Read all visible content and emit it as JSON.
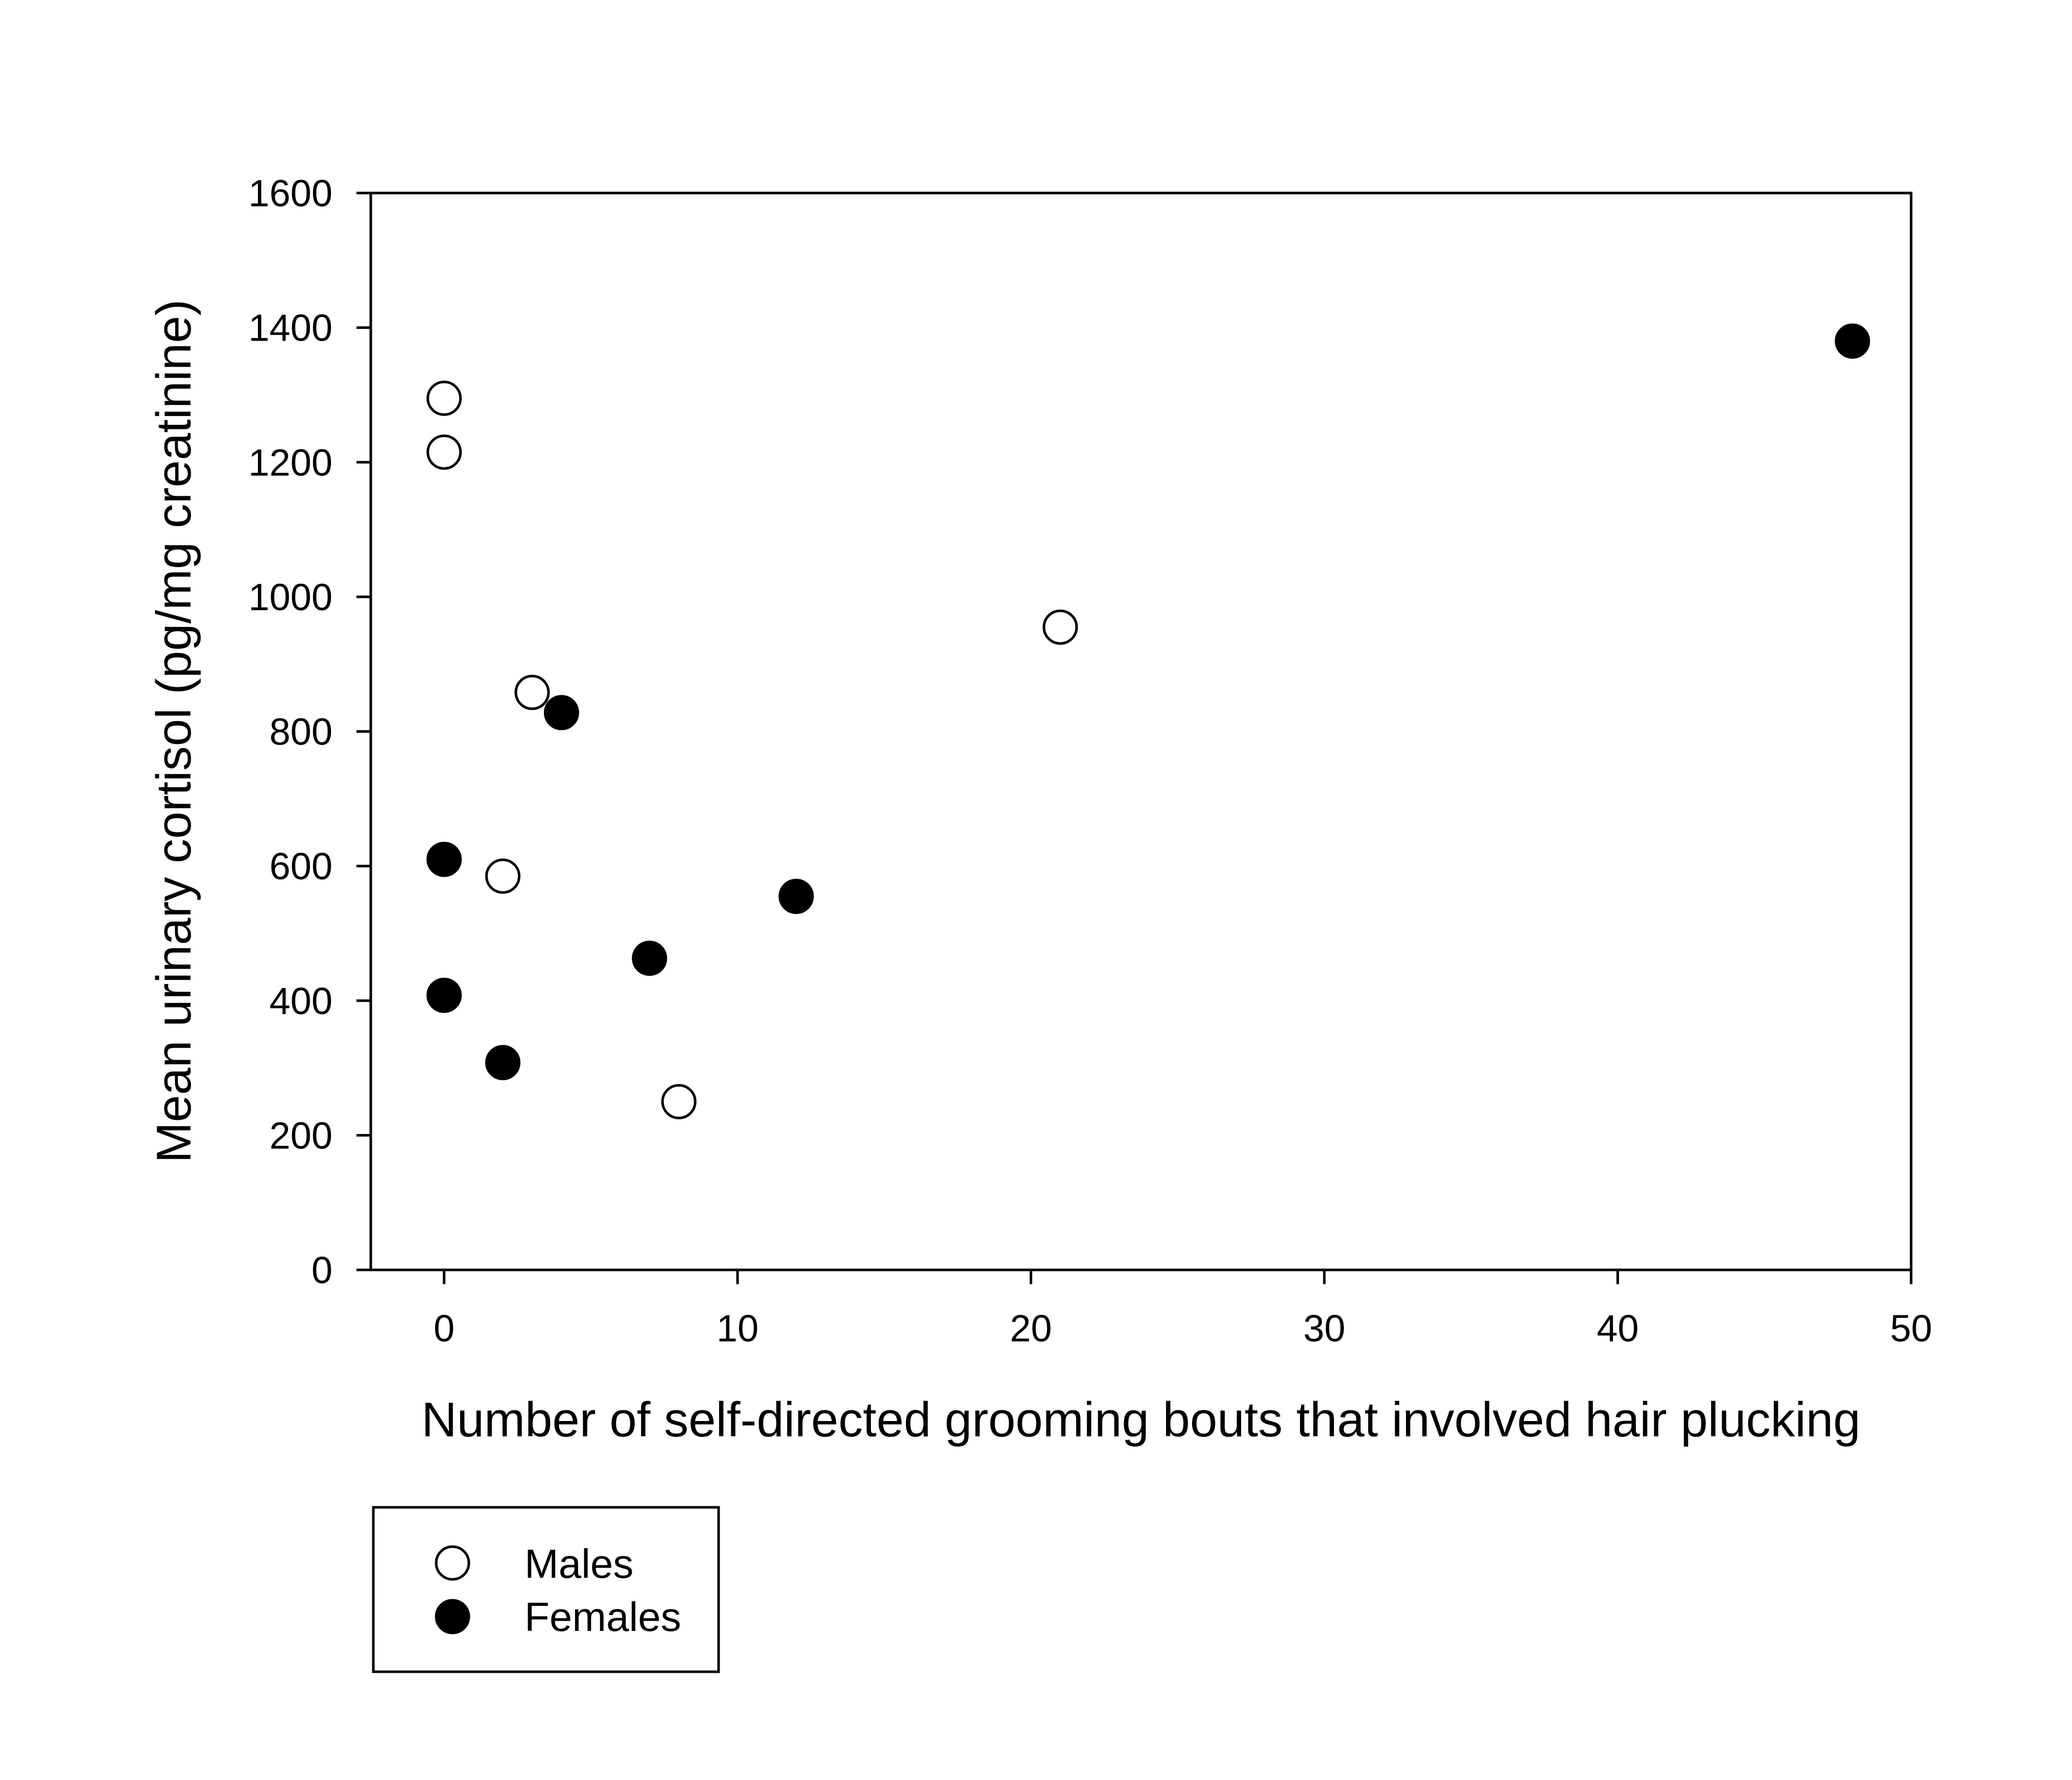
{
  "chart_data": {
    "type": "scatter",
    "xlabel": "Number of self-directed grooming bouts that involved hair plucking",
    "ylabel": "Mean urinary cortisol (pg/mg creatinine)",
    "xlim": [
      -2.5,
      50
    ],
    "ylim": [
      0,
      1600
    ],
    "xticks": [
      0,
      10,
      20,
      30,
      40,
      50
    ],
    "yticks": [
      0,
      200,
      400,
      600,
      800,
      1000,
      1200,
      1400,
      1600
    ],
    "grid": false,
    "legend_position": "bottom-left",
    "series": [
      {
        "name": "Males",
        "marker": "open-circle",
        "color": "#000000",
        "points": [
          {
            "x": 0,
            "y": 1295
          },
          {
            "x": 0,
            "y": 1215
          },
          {
            "x": 3,
            "y": 858
          },
          {
            "x": 21,
            "y": 955
          },
          {
            "x": 2,
            "y": 585
          },
          {
            "x": 8,
            "y": 250
          }
        ]
      },
      {
        "name": "Females",
        "marker": "filled-circle",
        "color": "#000000",
        "points": [
          {
            "x": 48,
            "y": 1380
          },
          {
            "x": 4,
            "y": 828
          },
          {
            "x": 0,
            "y": 610
          },
          {
            "x": 12,
            "y": 555
          },
          {
            "x": 7,
            "y": 463
          },
          {
            "x": 0,
            "y": 408
          },
          {
            "x": 2,
            "y": 308
          }
        ]
      }
    ]
  }
}
